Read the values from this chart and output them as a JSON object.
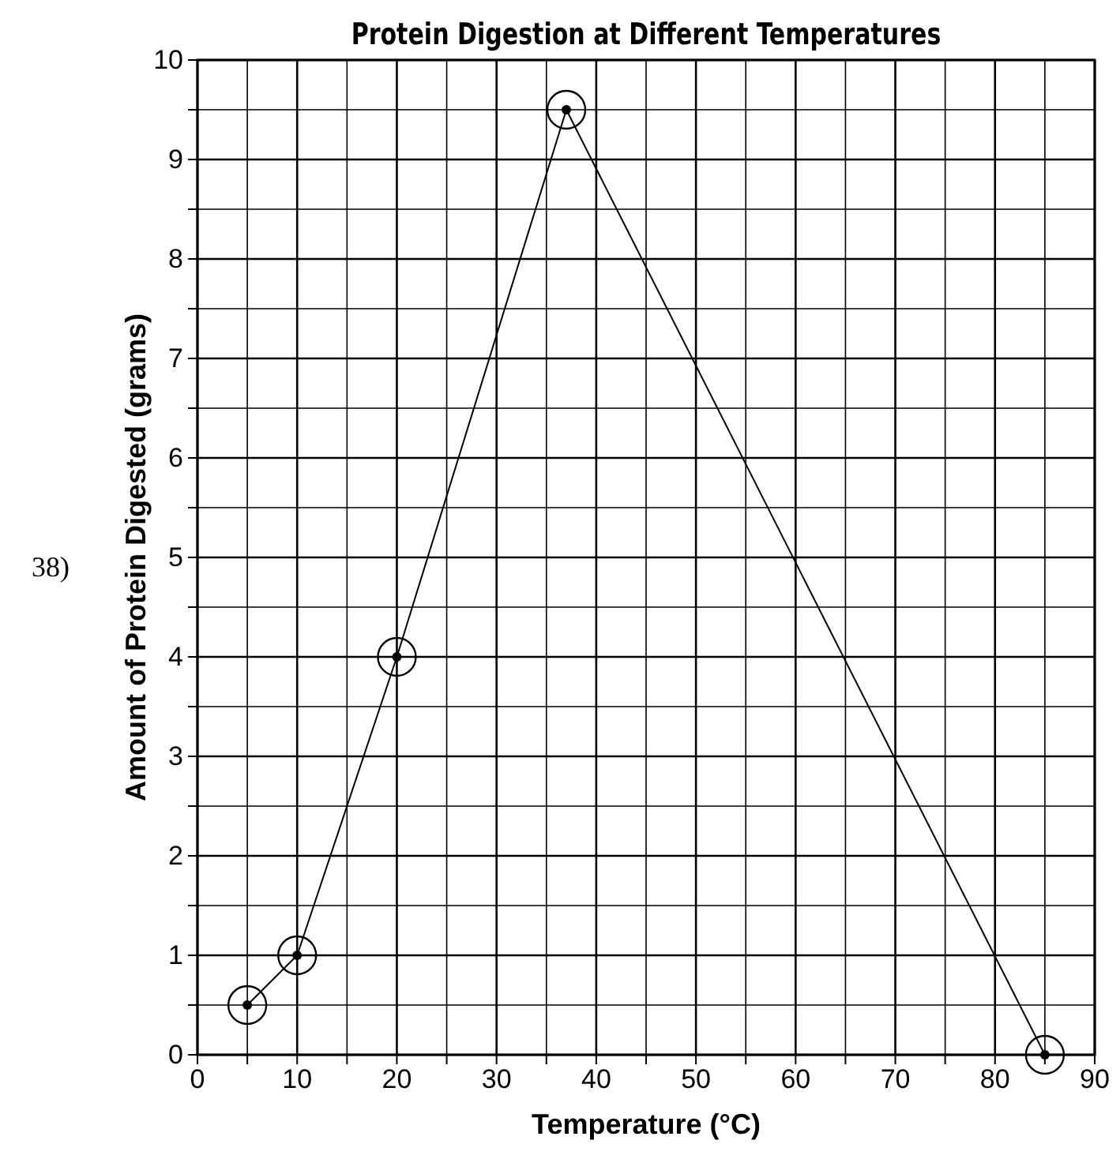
{
  "chart_data": {
    "type": "line",
    "title": "Protein Digestion at Different Temperatures",
    "xlabel": "Temperature (°C)",
    "ylabel": "Amount of Protein Digested (grams)",
    "annotations": [
      "38)"
    ],
    "x": [
      5,
      10,
      20,
      37,
      85
    ],
    "series": [
      {
        "color": "#000000",
        "values": [
          0.5,
          1,
          4,
          9.5,
          0
        ]
      }
    ],
    "xlim": [
      0,
      90
    ],
    "xticks": [
      0,
      {
        "value": 5,
        "label": null
      },
      10,
      {
        "value": 15,
        "label": null
      },
      20,
      {
        "value": 25,
        "label": null
      },
      30,
      {
        "value": 35,
        "label": null
      },
      40,
      {
        "value": 45,
        "label": null
      },
      50,
      {
        "value": 55,
        "label": null
      },
      60,
      {
        "value": 65,
        "label": null
      },
      70,
      {
        "value": 75,
        "label": null
      },
      80,
      {
        "value": 85,
        "label": null
      },
      90
    ],
    "ylim": [
      0,
      10
    ],
    "yticks": [
      0,
      {
        "value": 0.5,
        "label": null
      },
      1,
      {
        "value": 1.5,
        "label": null
      },
      2,
      {
        "value": 2.5,
        "label": null
      },
      3,
      {
        "value": 3.5,
        "label": null
      },
      4,
      {
        "value": 4.5,
        "label": null
      },
      5,
      {
        "value": 5.5,
        "label": null
      },
      6,
      {
        "value": 6.5,
        "label": null
      },
      7,
      {
        "value": 7.5,
        "label": null
      },
      8,
      {
        "value": 8.5,
        "label": null
      },
      9,
      {
        "value": 9.5,
        "label": null
      },
      10
    ],
    "grid": true,
    "marker": "circle",
    "line_style": "solid"
  }
}
